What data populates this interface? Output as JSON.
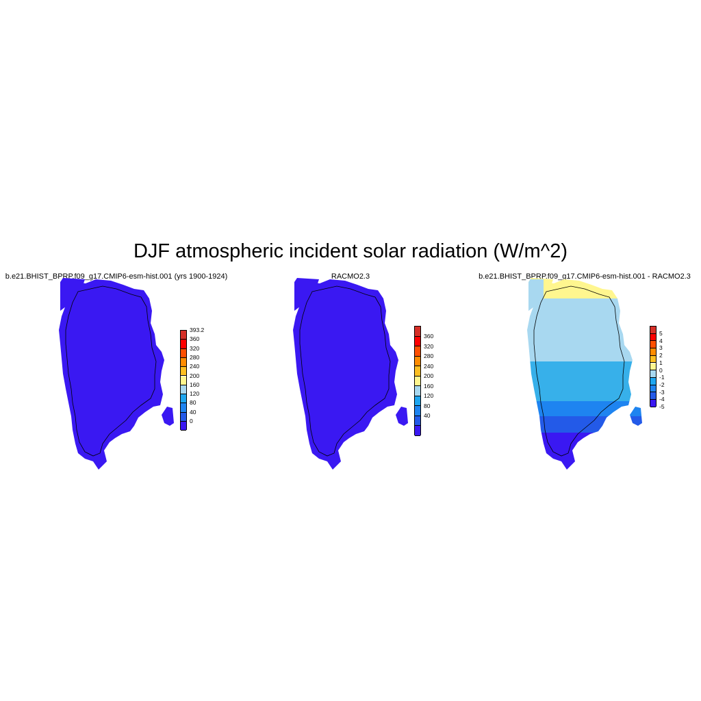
{
  "figure": {
    "title": "DJF atmospheric incident solar radiation (W/m^2)"
  },
  "panels": [
    {
      "title": "b.e21.BHIST_BPRP.f09_g17.CMIP6-esm-hist.001 (yrs 1900-1924)",
      "colorbar": {
        "labels": [
          "393.2",
          "360",
          "320",
          "280",
          "240",
          "200",
          "160",
          "120",
          "80",
          "40",
          "0"
        ],
        "colors": [
          "#d62f27",
          "#ff0000",
          "#ff4f00",
          "#ff8c00",
          "#fdbf22",
          "#fff68f",
          "#a8d8f0",
          "#1ea6f0",
          "#1e84f0",
          "#235ae8",
          "#3a18f2"
        ]
      },
      "field_color": "#3a18f2"
    },
    {
      "title": "RACMO2.3",
      "colorbar": {
        "labels": [
          "360",
          "320",
          "280",
          "240",
          "200",
          "160",
          "120",
          "80",
          "40"
        ],
        "colors": [
          "#d62f27",
          "#ff0000",
          "#ff4f00",
          "#ff8c00",
          "#fdbf22",
          "#fff68f",
          "#a8d8f0",
          "#1ea6f0",
          "#1e84f0",
          "#235ae8",
          "#3a18f2"
        ]
      },
      "field_color": "#3a18f2"
    },
    {
      "title": "b.e21.BHIST_BPRP.f09_g17.CMIP6-esm-hist.001 - RACMO2.3",
      "colorbar": {
        "labels": [
          "5",
          "4",
          "3",
          "2",
          "1",
          "0",
          "-1",
          "-2",
          "-3",
          "-4",
          "-5"
        ],
        "colors": [
          "#d62f27",
          "#ff0000",
          "#ff4f00",
          "#ff8c00",
          "#fdbf22",
          "#fff68f",
          "#a8d8f0",
          "#1ea6f0",
          "#1e84f0",
          "#235ae8",
          "#3a18f2"
        ]
      },
      "difference_zones": [
        {
          "label": "north coast",
          "color": "#fff68f"
        },
        {
          "label": "north interior",
          "color": "#a8d8f0"
        },
        {
          "label": "central",
          "color": "#37b0ea"
        },
        {
          "label": "south-central",
          "color": "#1e84f0"
        },
        {
          "label": "south",
          "color": "#235ae8"
        },
        {
          "label": "southern tip",
          "color": "#3a18f2"
        }
      ]
    }
  ]
}
